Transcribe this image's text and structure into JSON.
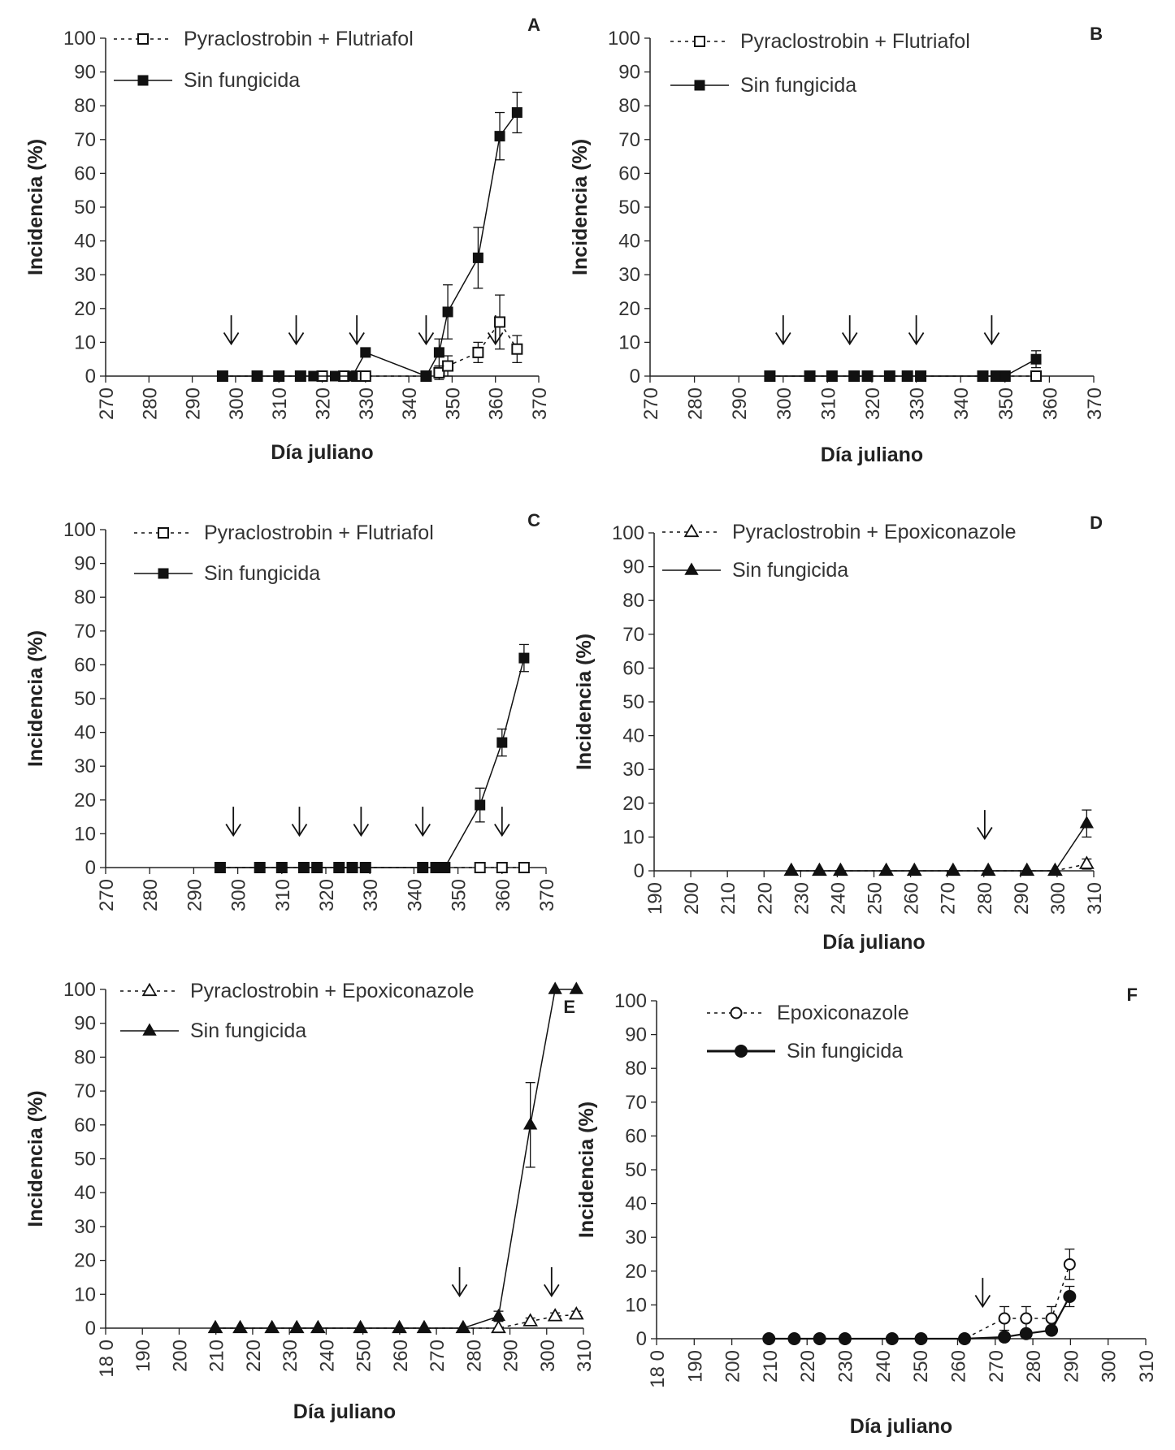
{
  "chart_data": [
    {
      "type": "line",
      "panel": "A",
      "xlabel": "Día juliano",
      "ylabel": "Incidencia (%)",
      "xlim": [
        270,
        370
      ],
      "ylim": [
        0,
        100
      ],
      "xticks": [
        "270",
        "280",
        "290",
        "300",
        "310",
        "320",
        "330",
        "340",
        "350",
        "360",
        "370"
      ],
      "yticks": [
        "0",
        "10",
        "20",
        "30",
        "40",
        "50",
        "60",
        "70",
        "80",
        "90",
        "100"
      ],
      "arrows": [
        299,
        314,
        328,
        344,
        360
      ],
      "series": [
        {
          "name": "Pyraclostrobin + Flutriafol",
          "marker": "square-open",
          "line": "dashed",
          "x": [
            297,
            305,
            310,
            315,
            320,
            325,
            328,
            330,
            344,
            347,
            349,
            356,
            361,
            365
          ],
          "y": [
            0,
            0,
            0,
            0,
            0,
            0,
            0,
            0,
            0,
            1,
            3,
            7,
            16,
            8
          ],
          "err": [
            0,
            0,
            0,
            0,
            0,
            0,
            0,
            0,
            0,
            2,
            3,
            3,
            8,
            4
          ]
        },
        {
          "name": "Sin fungicida",
          "marker": "square-filled",
          "line": "solid",
          "x": [
            297,
            305,
            310,
            315,
            318,
            323,
            327,
            330,
            344,
            347,
            349,
            356,
            361,
            365
          ],
          "y": [
            0,
            0,
            0,
            0,
            0,
            0,
            0,
            7,
            0,
            7,
            19,
            35,
            71,
            78
          ],
          "err": [
            0,
            0,
            0,
            0,
            0,
            0,
            0,
            0,
            0,
            4,
            8,
            9,
            7,
            6
          ]
        }
      ]
    },
    {
      "type": "line",
      "panel": "B",
      "xlabel": "Día juliano",
      "ylabel": "Incidencia (%)",
      "xlim": [
        270,
        370
      ],
      "ylim": [
        0,
        100
      ],
      "xticks": [
        "270",
        "280",
        "290",
        "300",
        "310",
        "320",
        "330",
        "340",
        "350",
        "360",
        "370"
      ],
      "yticks": [
        "0",
        "10",
        "20",
        "30",
        "40",
        "50",
        "60",
        "70",
        "80",
        "90",
        "100"
      ],
      "arrows": [
        300,
        315,
        330,
        347
      ],
      "series": [
        {
          "name": "Pyraclostrobin + Flutriafol",
          "marker": "square-open",
          "line": "dashed",
          "x": [
            297,
            306,
            311,
            316,
            319,
            324,
            328,
            331,
            345,
            348,
            350,
            357
          ],
          "y": [
            0,
            0,
            0,
            0,
            0,
            0,
            0,
            0,
            0,
            0,
            0,
            0
          ],
          "err": [
            0,
            0,
            0,
            0,
            0,
            0,
            0,
            0,
            0,
            0,
            0,
            0
          ]
        },
        {
          "name": "Sin fungicida",
          "marker": "square-filled",
          "line": "solid",
          "x": [
            297,
            306,
            311,
            316,
            319,
            324,
            328,
            331,
            345,
            348,
            350,
            357
          ],
          "y": [
            0,
            0,
            0,
            0,
            0,
            0,
            0,
            0,
            0,
            0,
            0,
            5
          ],
          "err": [
            0,
            0,
            0,
            0,
            0,
            0,
            0,
            0,
            0,
            0,
            0,
            2.5
          ]
        }
      ]
    },
    {
      "type": "line",
      "panel": "C",
      "xlabel": "",
      "ylabel": "Incidencia (%)",
      "xlim": [
        270,
        370
      ],
      "ylim": [
        0,
        100
      ],
      "xticks": [
        "270",
        "280",
        "290",
        "300",
        "310",
        "320",
        "330",
        "340",
        "350",
        "360",
        "370"
      ],
      "yticks": [
        "0",
        "10",
        "20",
        "30",
        "40",
        "50",
        "60",
        "70",
        "80",
        "90",
        "100"
      ],
      "arrows": [
        299,
        314,
        328,
        342,
        360
      ],
      "series": [
        {
          "name": "Pyraclostrobin + Flutriafol",
          "marker": "square-open",
          "line": "dashed",
          "x": [
            296,
            305,
            310,
            315,
            318,
            323,
            326,
            329,
            342,
            345,
            347,
            355,
            360,
            365
          ],
          "y": [
            0,
            0,
            0,
            0,
            0,
            0,
            0,
            0,
            0,
            0,
            0,
            0,
            0,
            0
          ],
          "err": [
            0,
            0,
            0,
            0,
            0,
            0,
            0,
            0,
            0,
            0,
            0,
            0,
            0,
            0
          ]
        },
        {
          "name": "Sin fungicida",
          "marker": "square-filled",
          "line": "solid",
          "x": [
            296,
            305,
            310,
            315,
            318,
            323,
            326,
            329,
            342,
            345,
            347,
            355,
            360,
            365
          ],
          "y": [
            0,
            0,
            0,
            0,
            0,
            0,
            0,
            0,
            0,
            0,
            0,
            18.5,
            37,
            62
          ],
          "err": [
            0,
            0,
            0,
            0,
            0,
            0,
            0,
            0,
            0,
            0,
            0,
            5,
            4,
            4
          ]
        }
      ]
    },
    {
      "type": "line",
      "panel": "D",
      "xlabel": "Día juliano",
      "ylabel": "Incidencia (%)",
      "xlim": [
        190,
        315
      ],
      "ylim": [
        0,
        100
      ],
      "xticks": [
        "190",
        "200",
        "210",
        "220",
        "230",
        "240",
        "250",
        "260",
        "270",
        "280",
        "290",
        "300",
        "310"
      ],
      "yticks": [
        "0",
        "10",
        "20",
        "30",
        "40",
        "50",
        "60",
        "70",
        "80",
        "90",
        "100"
      ],
      "arrows": [
        284
      ],
      "series": [
        {
          "name": "Pyraclostrobin + Epoxiconazole",
          "marker": "triangle-open",
          "line": "dashed",
          "x": [
            229,
            237,
            243,
            256,
            264,
            275,
            285,
            296,
            304,
            313
          ],
          "y": [
            0,
            0,
            0,
            0,
            0,
            0,
            0,
            0,
            0,
            2
          ],
          "err": [
            0,
            0,
            0,
            0,
            0,
            0,
            0,
            0,
            0,
            1.5
          ]
        },
        {
          "name": "Sin fungicida",
          "marker": "triangle-filled",
          "line": "solid",
          "x": [
            229,
            237,
            243,
            256,
            264,
            275,
            285,
            296,
            304,
            313
          ],
          "y": [
            0,
            0,
            0,
            0,
            0,
            0,
            0,
            0,
            0,
            14
          ],
          "err": [
            0,
            0,
            0,
            0,
            0,
            0,
            0,
            0,
            0,
            4
          ]
        }
      ]
    },
    {
      "type": "line",
      "panel": "E",
      "xlabel": "Día juliano",
      "ylabel": "Incidencia (%)",
      "xlim": [
        180,
        315
      ],
      "ylim": [
        0,
        100
      ],
      "xticks": [
        "18 0",
        "190",
        "200",
        "210",
        "220",
        "230",
        "240",
        "250",
        "260",
        "270",
        "280",
        "290",
        "300",
        "310"
      ],
      "yticks": [
        "0",
        "10",
        "20",
        "30",
        "40",
        "50",
        "60",
        "70",
        "80",
        "90",
        "100"
      ],
      "arrows": [
        280,
        306
      ],
      "series": [
        {
          "name": "Pyraclostrobin + Epoxiconazole",
          "marker": "triangle-open",
          "line": "dashed",
          "x": [
            211,
            218,
            227,
            234,
            240,
            252,
            263,
            270,
            281,
            291,
            300,
            307,
            313
          ],
          "y": [
            0,
            0,
            0,
            0,
            0,
            0,
            0,
            0,
            0,
            0,
            2,
            3.5,
            4
          ],
          "err": [
            0,
            0,
            0,
            0,
            0,
            0,
            0,
            0,
            0,
            0,
            1,
            1,
            1
          ]
        },
        {
          "name": "Sin fungicida",
          "marker": "triangle-filled",
          "line": "solid",
          "x": [
            211,
            218,
            227,
            234,
            240,
            252,
            263,
            270,
            281,
            291,
            300,
            307,
            313
          ],
          "y": [
            0,
            0,
            0,
            0,
            0,
            0,
            0,
            0,
            0,
            3.5,
            60,
            100,
            100
          ],
          "err": [
            0,
            0,
            0,
            0,
            0,
            0,
            0,
            0,
            0,
            1.5,
            12.5,
            0,
            0
          ]
        }
      ]
    },
    {
      "type": "line",
      "panel": "F",
      "xlabel": "Día juliano",
      "ylabel": "Incidencia (%)",
      "xlim": [
        180,
        315
      ],
      "ylim": [
        0,
        100
      ],
      "xticks": [
        "18 0",
        "190",
        "200",
        "210",
        "220",
        "230",
        "240",
        "250",
        "260",
        "270",
        "280",
        "290",
        "300",
        "310"
      ],
      "yticks": [
        "0",
        "10",
        "20",
        "30",
        "40",
        "50",
        "60",
        "70",
        "80",
        "90",
        "100"
      ],
      "arrows": [
        270
      ],
      "series": [
        {
          "name": "Epoxiconazole",
          "marker": "circle-open",
          "line": "dashed",
          "x": [
            211,
            218,
            225,
            232,
            245,
            253,
            265,
            276,
            282,
            289,
            294
          ],
          "y": [
            0,
            0,
            0,
            0,
            0,
            0,
            0,
            6,
            6,
            6,
            22
          ],
          "err": [
            0,
            0,
            0,
            0,
            0,
            0,
            0,
            3.5,
            3.5,
            3.5,
            4.5
          ]
        },
        {
          "name": "Sin fungicida",
          "marker": "circle-filled",
          "line": "solid",
          "x": [
            211,
            218,
            225,
            232,
            245,
            253,
            265,
            276,
            282,
            289,
            294
          ],
          "y": [
            0,
            0,
            0,
            0,
            0,
            0,
            0,
            0.5,
            1.5,
            2.5,
            12.5
          ],
          "err": [
            0,
            0,
            0,
            0,
            0,
            0,
            0,
            0,
            0,
            0,
            3
          ]
        }
      ]
    }
  ]
}
